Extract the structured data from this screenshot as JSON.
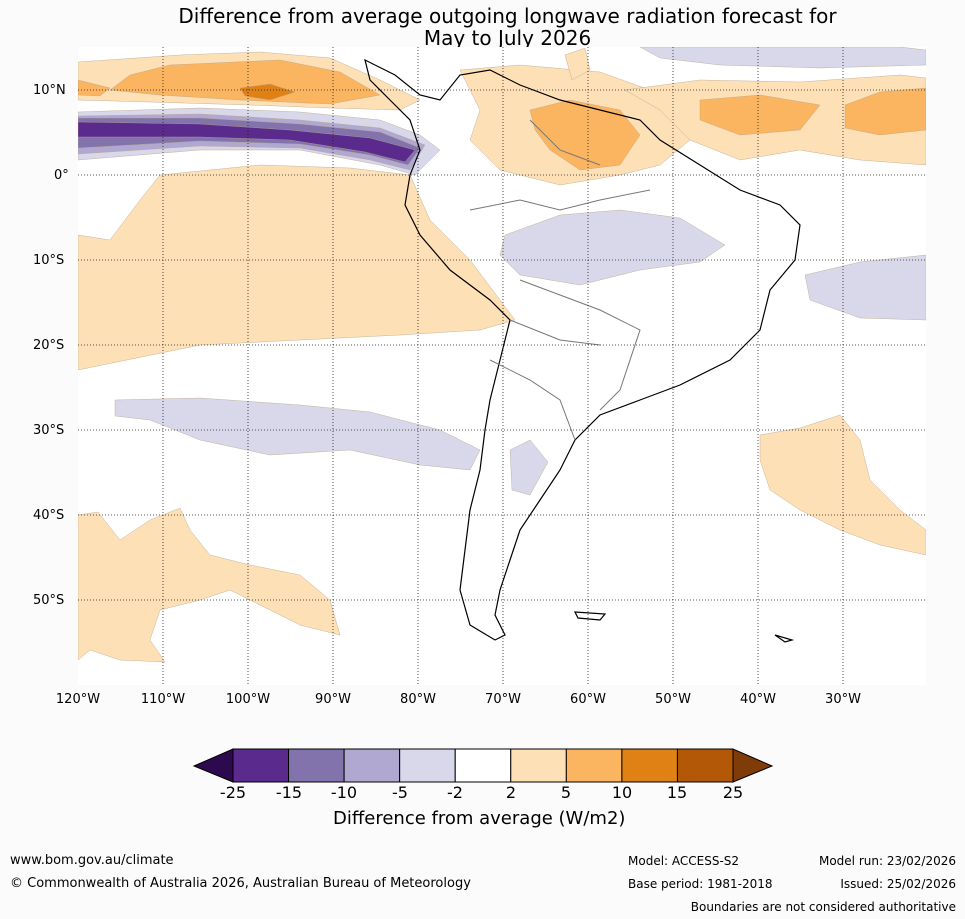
{
  "title_line1": "Difference from average outgoing longwave radiation forecast for",
  "title_line2": "May to July 2026",
  "lat_labels": [
    "10°N",
    "0°",
    "10°S",
    "20°S",
    "30°S",
    "40°S",
    "50°S"
  ],
  "lon_labels": [
    "120°W",
    "110°W",
    "100°W",
    "90°W",
    "80°W",
    "70°W",
    "60°W",
    "50°W",
    "40°W",
    "30°W"
  ],
  "colorbar": {
    "ticks": [
      "-25",
      "-15",
      "-10",
      "-5",
      "-2",
      "2",
      "5",
      "10",
      "15",
      "25"
    ],
    "colors": [
      "#2d0a4e",
      "#5a2a8c",
      "#8273ac",
      "#b0a8d0",
      "#d8d8ea",
      "#ffffff",
      "#fde0b6",
      "#fbb460",
      "#e08116",
      "#b35806",
      "#7f3b08"
    ],
    "label": "Difference from average (W/m2)"
  },
  "footer": {
    "url": "www.bom.gov.au/climate",
    "copyright": "© Commonwealth of Australia 2026, Australian Bureau of Meteorology",
    "model": "Model: ACCESS-S2",
    "model_run": "Model run: 23/02/2026",
    "base_period": "Base period: 1981-2018",
    "issued": "Issued: 25/02/2026",
    "boundaries_note": "Boundaries are not considered authoritative"
  }
}
